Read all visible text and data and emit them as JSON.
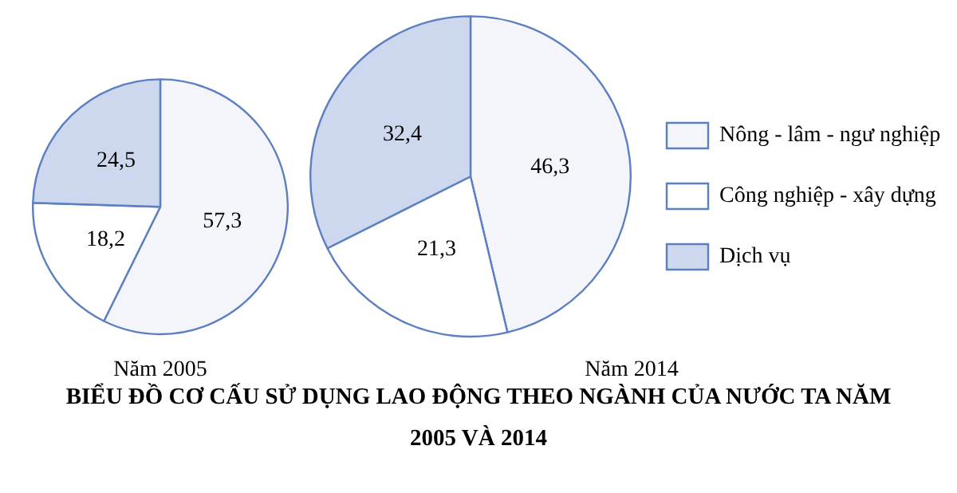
{
  "chart_data": [
    {
      "type": "pie",
      "title": "Năm 2005",
      "categories": [
        null,
        null,
        null
      ],
      "values": [
        57.3,
        18.2,
        24.5
      ],
      "value_labels": [
        "57,3",
        "18,2",
        "24,5"
      ],
      "colors": [
        "#f3f5fb",
        "#ffffff",
        "#cdd8ee"
      ],
      "legend": false,
      "annotations": [
        "BIỂU ĐỒ CƠ CẤU SỬ DỤNG LAO ĐỘNG THEO NGÀNH CỦA NƯỚC TA NĂM 2005 VÀ 2014"
      ]
    },
    {
      "type": "pie",
      "title": "Năm 2014",
      "categories": [
        "Nông - lâm - ngư nghiệp",
        "Công nghiệp - xây dựng",
        "Dịch vụ"
      ],
      "values": [
        46.3,
        21.3,
        32.4
      ],
      "value_labels": [
        "46,3",
        "21,3",
        "32,4"
      ],
      "colors": [
        "#f3f5fb",
        "#ffffff",
        "#cdd8ee"
      ],
      "legend": "right"
    }
  ]
}
